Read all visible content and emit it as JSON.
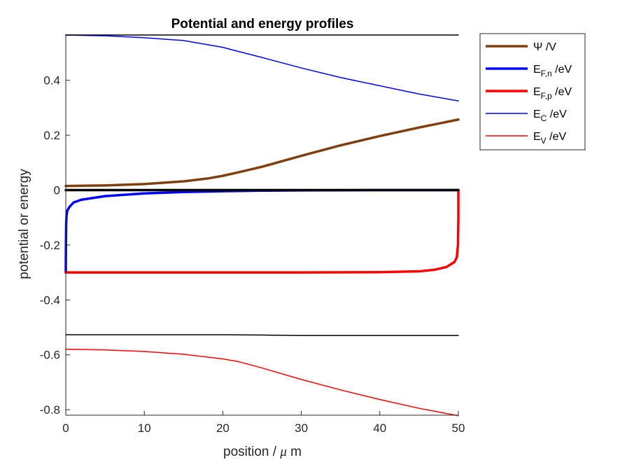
{
  "chart_data": {
    "type": "line",
    "title": "Potential and energy profiles",
    "xlabel_prefix": "position / ",
    "xlabel_mu": "μ",
    "xlabel_suffix": " m",
    "ylabel": "potential or energy",
    "xlim": [
      0,
      50
    ],
    "ylim": [
      -0.82,
      0.565
    ],
    "xticks": [
      0,
      10,
      20,
      30,
      40,
      50
    ],
    "xtick_labels": [
      "0",
      "10",
      "20",
      "30",
      "40",
      "50"
    ],
    "yticks": [
      -0.8,
      -0.6,
      -0.4,
      -0.2,
      0,
      0.2,
      0.4
    ],
    "ytick_labels": [
      "-0.8",
      "-0.6",
      "-0.4",
      "-0.2",
      "0",
      "0.2",
      "0.4"
    ],
    "grid": false,
    "legend_position": "outside-top-right",
    "legend": [
      {
        "main": "Ψ /V",
        "sub": "",
        "tail": "",
        "color": "#7f3f0f",
        "weight": "thick"
      },
      {
        "main": "E",
        "sub": "F,n",
        "tail": " /eV",
        "color": "#0000ff",
        "weight": "thick"
      },
      {
        "main": "E",
        "sub": "F,p",
        "tail": " /eV",
        "color": "#ff0000",
        "weight": "thick"
      },
      {
        "main": "E",
        "sub": "C",
        "tail": " /eV",
        "color": "#0000ff",
        "weight": "thin"
      },
      {
        "main": "E",
        "sub": "V",
        "tail": " /eV",
        "color": "#ff0000",
        "weight": "thin"
      }
    ],
    "series": [
      {
        "key": "ec",
        "color": "#0000ff",
        "weight": "thin",
        "x": [
          0,
          5,
          10,
          15,
          20,
          22,
          25,
          30,
          35,
          40,
          45,
          50
        ],
        "y": [
          0.565,
          0.562,
          0.555,
          0.545,
          0.52,
          0.505,
          0.483,
          0.445,
          0.41,
          0.38,
          0.35,
          0.325
        ]
      },
      {
        "key": "ev",
        "color": "#ff0000",
        "weight": "thin",
        "x": [
          0,
          5,
          10,
          15,
          20,
          22,
          25,
          30,
          35,
          40,
          45,
          50
        ],
        "y": [
          -0.58,
          -0.582,
          -0.588,
          -0.598,
          -0.615,
          -0.625,
          -0.648,
          -0.69,
          -0.728,
          -0.763,
          -0.795,
          -0.822
        ]
      },
      {
        "key": "psi",
        "color": "#7f3f0f",
        "weight": "thick",
        "x": [
          0,
          5,
          10,
          15,
          18,
          20,
          22,
          25,
          30,
          35,
          40,
          45,
          50
        ],
        "y": [
          0.015,
          0.017,
          0.022,
          0.032,
          0.042,
          0.052,
          0.065,
          0.085,
          0.125,
          0.163,
          0.197,
          0.228,
          0.257
        ]
      },
      {
        "key": "efn",
        "color": "#0000ff",
        "weight": "thick",
        "x": [
          0,
          0.02,
          0.05,
          0.1,
          0.2,
          0.5,
          1,
          2,
          5,
          10,
          15,
          20,
          25,
          30,
          40,
          50
        ],
        "y": [
          -0.3,
          -0.2,
          -0.12,
          -0.09,
          -0.075,
          -0.06,
          -0.045,
          -0.035,
          -0.022,
          -0.012,
          -0.007,
          -0.004,
          -0.002,
          -0.001,
          0,
          0
        ]
      },
      {
        "key": "efp",
        "color": "#ff0000",
        "weight": "thick",
        "x": [
          0,
          10,
          20,
          30,
          40,
          45,
          47,
          48.5,
          49.5,
          49.8,
          49.95,
          50,
          50
        ],
        "y": [
          -0.3,
          -0.3,
          -0.3,
          -0.3,
          -0.299,
          -0.296,
          -0.29,
          -0.28,
          -0.262,
          -0.245,
          -0.2,
          -0.1,
          0
        ]
      },
      {
        "key": "vac",
        "color": "#000000",
        "weight": "thin",
        "x": [
          0,
          50
        ],
        "y": [
          0.565,
          0.565
        ]
      },
      {
        "key": "fermi0",
        "color": "#000000",
        "weight": "thick",
        "x": [
          0,
          50
        ],
        "y": [
          0,
          0
        ]
      },
      {
        "key": "low",
        "color": "#000000",
        "weight": "thin",
        "x": [
          0,
          20,
          25,
          30,
          50
        ],
        "y": [
          -0.527,
          -0.527,
          -0.528,
          -0.53,
          -0.53
        ]
      }
    ]
  }
}
